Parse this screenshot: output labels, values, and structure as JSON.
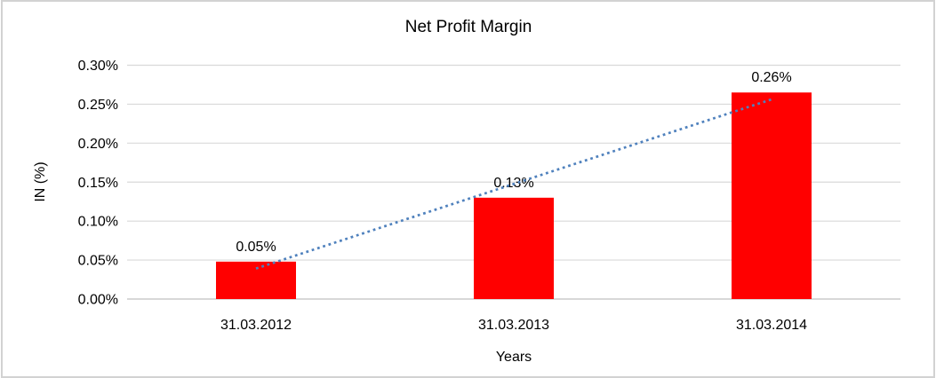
{
  "chart_data": {
    "type": "bar",
    "title": "Net Profit Margin",
    "xlabel": "Years",
    "ylabel": "IN (%)",
    "categories": [
      "31.03.2012",
      "31.03.2013",
      "31.03.2014"
    ],
    "series": [
      {
        "name": "Net Profit Margin",
        "values": [
          0.048,
          0.13,
          0.265
        ],
        "unit": "%",
        "color": "#ff0000"
      }
    ],
    "data_labels": [
      "0.05%",
      "0.13%",
      "0.26%"
    ],
    "ylim": [
      0,
      0.3
    ],
    "ytick_step": 0.05,
    "ytick_labels": [
      "0.00%",
      "0.05%",
      "0.10%",
      "0.15%",
      "0.20%",
      "0.25%",
      "0.30%"
    ],
    "grid": "horizontal",
    "legend": "none",
    "trendline": {
      "type": "linear",
      "style": "dotted",
      "color": "#4f81bd"
    },
    "colors": {
      "bar": "#ff0000",
      "trendline": "#4f81bd",
      "gridline": "#d9d9d9",
      "axis_line": "#c0c0c0",
      "text": "#000000",
      "frame_border": "#d2d2d2",
      "background": "#ffffff"
    }
  }
}
